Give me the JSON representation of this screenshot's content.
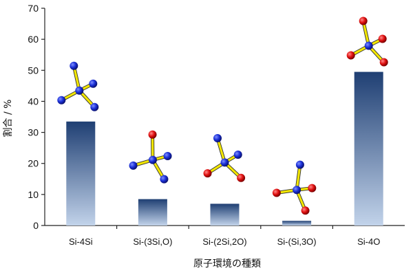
{
  "chart_data": {
    "type": "bar",
    "categories": [
      "Si-4Si",
      "Si-(3Si,O)",
      "Si-(2Si,2O)",
      "Si-(Si,3O)",
      "Si-4O"
    ],
    "values": [
      33.5,
      8.5,
      7.0,
      1.5,
      49.5
    ],
    "title": "",
    "xlabel": "原子環境の種類",
    "ylabel": "割合 / %",
    "ylim": [
      0,
      70
    ],
    "yticks": [
      0,
      10,
      20,
      30,
      40,
      50,
      60,
      70
    ],
    "grid": false,
    "legend": "none",
    "bar_gradient": {
      "top": "#1f3f73",
      "bottom": "#c2d3ea"
    },
    "atom_colors": {
      "Si": "#1a2fd6",
      "O": "#e01010",
      "bond": "#f2e600"
    },
    "annotations": [
      {
        "category": "Si-4Si",
        "depiction": "tetrahedral cluster",
        "neighbors": [
          "Si",
          "Si",
          "Si",
          "Si"
        ]
      },
      {
        "category": "Si-(3Si,O)",
        "depiction": "tetrahedral cluster",
        "neighbors": [
          "O",
          "Si",
          "Si",
          "Si"
        ]
      },
      {
        "category": "Si-(2Si,2O)",
        "depiction": "tetrahedral cluster",
        "neighbors": [
          "Si",
          "Si",
          "O",
          "O"
        ]
      },
      {
        "category": "Si-(Si,3O)",
        "depiction": "tetrahedral cluster",
        "neighbors": [
          "Si",
          "O",
          "O",
          "O"
        ]
      },
      {
        "category": "Si-4O",
        "depiction": "tetrahedral cluster",
        "neighbors": [
          "O",
          "O",
          "O",
          "O"
        ]
      }
    ]
  }
}
